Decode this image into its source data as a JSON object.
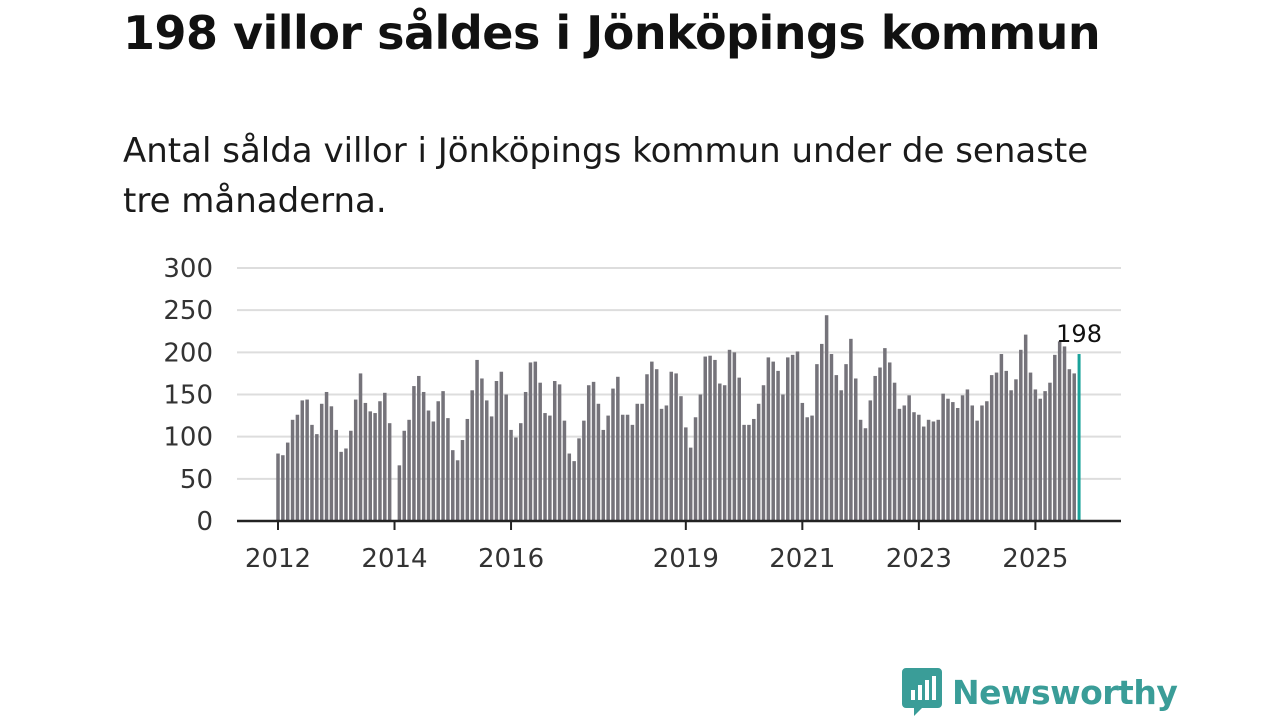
{
  "title": "198 villor såldes i Jönköpings kommun",
  "subtitle": "Antal sålda villor i Jönköpings kommun under de senaste tre månaderna.",
  "brand": {
    "name": "Newsworthy",
    "icon": "newsworthy-logo-icon"
  },
  "colors": {
    "bar": "#75737a",
    "highlight": "#1aa29a",
    "grid": "#dddddd",
    "axis": "#222222",
    "brand": "#3a9d98"
  },
  "chart_data": {
    "type": "bar",
    "title": "Antal sålda villor i Jönköpings kommun",
    "xlabel": "",
    "ylabel": "",
    "ylim": [
      0,
      300
    ],
    "yticks": [
      "0",
      "50",
      "100",
      "150",
      "200",
      "250",
      "300"
    ],
    "xticks": [
      {
        "label": "2012",
        "index": 0
      },
      {
        "label": "2014",
        "index": 24
      },
      {
        "label": "2016",
        "index": 48
      },
      {
        "label": "2019",
        "index": 84
      },
      {
        "label": "2021",
        "index": 108
      },
      {
        "label": "2023",
        "index": 132
      },
      {
        "label": "2025",
        "index": 156
      }
    ],
    "start_period": "2012-01",
    "values": [
      80,
      78,
      93,
      120,
      126,
      143,
      144,
      114,
      103,
      139,
      153,
      136,
      108,
      82,
      86,
      107,
      144,
      175,
      140,
      130,
      128,
      142,
      152,
      116,
      0,
      66,
      107,
      120,
      160,
      172,
      153,
      131,
      118,
      142,
      154,
      122,
      84,
      72,
      96,
      121,
      155,
      191,
      169,
      143,
      124,
      166,
      177,
      150,
      108,
      99,
      116,
      153,
      188,
      189,
      164,
      128,
      125,
      166,
      162,
      119,
      80,
      71,
      98,
      119,
      161,
      165,
      139,
      108,
      125,
      157,
      171,
      126,
      126,
      114,
      139,
      139,
      174,
      189,
      180,
      133,
      137,
      177,
      175,
      148,
      111,
      87,
      123,
      150,
      195,
      196,
      191,
      163,
      161,
      203,
      200,
      170,
      114,
      114,
      121,
      139,
      161,
      194,
      189,
      178,
      150,
      194,
      197,
      201,
      140,
      123,
      125,
      186,
      210,
      244,
      198,
      173,
      155,
      186,
      216,
      169,
      120,
      110,
      143,
      172,
      182,
      205,
      188,
      164,
      133,
      137,
      149,
      129,
      126,
      112,
      120,
      118,
      120,
      151,
      145,
      141,
      134,
      149,
      156,
      137,
      119,
      137,
      142,
      173,
      176,
      198,
      178,
      155,
      168,
      203,
      221,
      176,
      156,
      145,
      154,
      164,
      197,
      213,
      207,
      180,
      175,
      198
    ],
    "highlight_label": "198"
  }
}
